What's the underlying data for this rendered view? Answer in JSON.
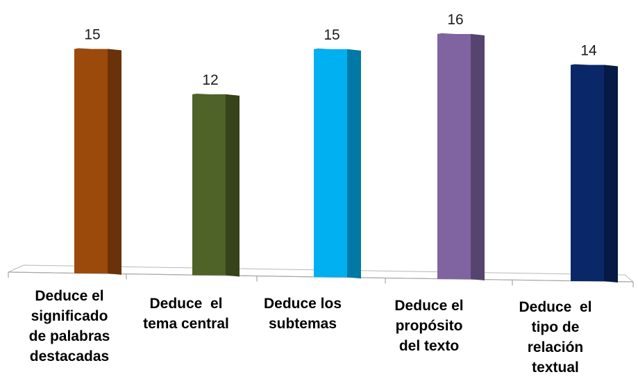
{
  "chart_data": {
    "type": "bar",
    "title": "",
    "xlabel": "",
    "ylabel": "",
    "ylim": [
      0,
      16
    ],
    "grid": false,
    "legend": "none",
    "categories": [
      [
        "Deduce el",
        "significado",
        "de palabras",
        "destacadas"
      ],
      [
        "Deduce  el",
        "tema central"
      ],
      [
        "Deduce los",
        "subtemas"
      ],
      [
        "Deduce el",
        "propósito",
        "del texto"
      ],
      [
        "Deduce  el",
        "tipo de",
        "relación",
        "textual"
      ]
    ],
    "values": [
      15,
      12,
      15,
      16,
      14
    ],
    "colors": [
      "#9B4A0C",
      "#4F6228",
      "#00B0F0",
      "#8064A2",
      "#0A2868"
    ],
    "side_colors": [
      "#6A3208",
      "#36431B",
      "#0079A6",
      "#57446E",
      "#061A45"
    ]
  }
}
